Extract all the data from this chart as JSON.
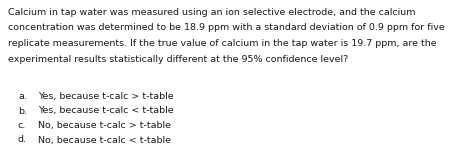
{
  "paragraph_lines": [
    "Calcium in tap water was measured using an ion selective electrode, and the calcium",
    "concentration was determined to be 18.9 ppm with a standard deviation of 0.9 ppm for five",
    "replicate measurements. If the true value of calcium in the tap water is 19.7 ppm, are the",
    "experimental results statistically different at the 95% confidence level?"
  ],
  "options": [
    [
      "a.",
      "Yes, because t-calc > t-table"
    ],
    [
      "b.",
      "Yes, because t-calc < t-table"
    ],
    [
      "c.",
      "No, because t-calc > t-table"
    ],
    [
      "d.",
      "No, because t-calc < t-table"
    ]
  ],
  "font_size": 6.8,
  "text_color": "#1a1a1a",
  "background_color": "#ffffff",
  "figsize": [
    4.74,
    1.66
  ],
  "dpi": 100
}
